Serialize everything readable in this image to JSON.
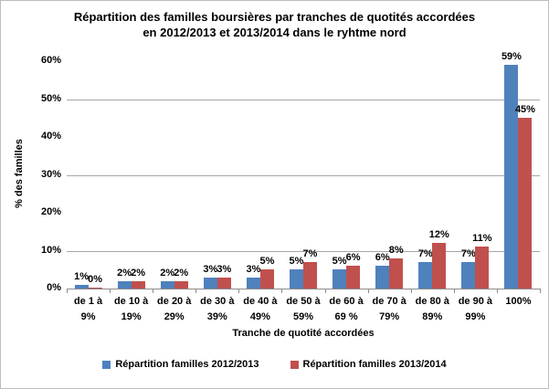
{
  "title": {
    "line1": "Répartition des familles boursières par tranches de quotités accordées",
    "line2": "en 2012/2013 et 2013/2014 dans le ryhtme nord"
  },
  "chart_data": {
    "type": "bar",
    "title": "Répartition des familles boursières par tranches de quotités accordées en 2012/2013 et 2013/2014 dans le ryhtme nord",
    "categories": [
      [
        "de 1 à",
        "9%"
      ],
      [
        "de 10 à",
        "19%"
      ],
      [
        "de 20 à",
        "29%"
      ],
      [
        "de 30 à",
        "39%"
      ],
      [
        "de 40 à",
        "49%"
      ],
      [
        "de 50 à",
        "59%"
      ],
      [
        "de 60 à",
        "69 %"
      ],
      [
        "de 70 à",
        "79%"
      ],
      [
        "de 80 à",
        "89%"
      ],
      [
        "de 90 à",
        "99%"
      ],
      [
        "100%"
      ]
    ],
    "series": [
      {
        "name": "Répartition familles 2012/2013",
        "color": "#4F81BD",
        "values": [
          1,
          2,
          2,
          3,
          3,
          5,
          5,
          6,
          7,
          7,
          59
        ],
        "labels": [
          "1%",
          "2%",
          "2%",
          "3%",
          "3%",
          "5%",
          "5%",
          "6%",
          "7%",
          "7%",
          "59%"
        ]
      },
      {
        "name": "Répartition familles 2013/2014",
        "color": "#C0504D",
        "values": [
          0,
          2,
          2,
          3,
          5,
          7,
          6,
          8,
          12,
          11,
          45
        ],
        "labels": [
          "0%",
          "2%",
          "2%",
          "3%",
          "5%",
          "7%",
          "6%",
          "8%",
          "12%",
          "11%",
          "45%"
        ]
      }
    ],
    "xlabel": "Tranche de quotité accordées",
    "ylabel": "% des familles",
    "ylim": [
      0,
      60
    ],
    "yticks": [
      {
        "value": 0,
        "label": "0%"
      },
      {
        "value": 10,
        "label": "10%"
      },
      {
        "value": 20,
        "label": "20%"
      },
      {
        "value": 30,
        "label": "30%"
      },
      {
        "value": 40,
        "label": "40%"
      },
      {
        "value": 50,
        "label": "50%"
      },
      {
        "value": 60,
        "label": "60%"
      }
    ],
    "gridlines": [
      10,
      30,
      50
    ],
    "legend_position": "bottom",
    "axis_color": "#8c8c8c",
    "gridline_color": "#a6a6a6"
  }
}
